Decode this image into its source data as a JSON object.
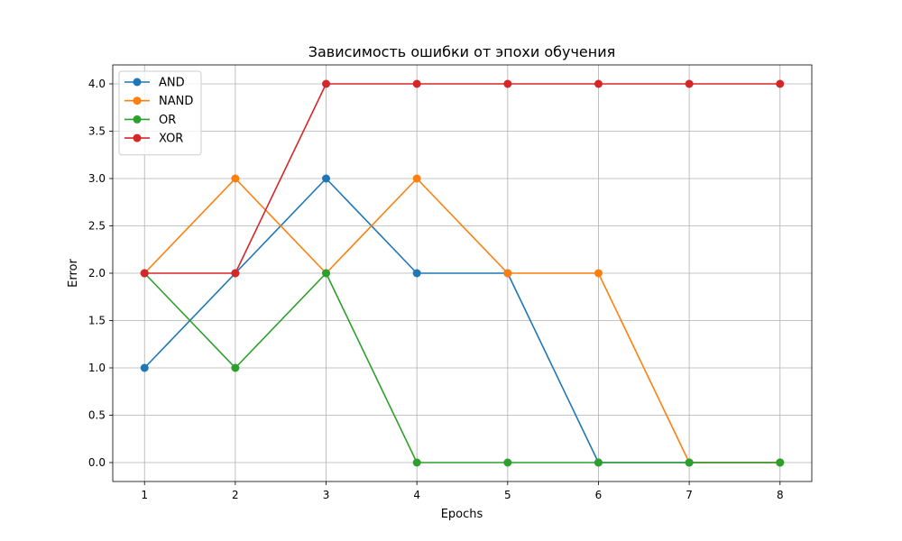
{
  "chart_data": {
    "type": "line",
    "title": "Зависимость ошибки от эпохи обучения",
    "xlabel": "Epochs",
    "ylabel": "Error",
    "x": [
      1,
      2,
      3,
      4,
      5,
      6,
      7,
      8
    ],
    "xticks": [
      "1",
      "2",
      "3",
      "4",
      "5",
      "6",
      "7",
      "8"
    ],
    "yticks": [
      "0.0",
      "0.5",
      "1.0",
      "1.5",
      "2.0",
      "2.5",
      "3.0",
      "3.5",
      "4.0"
    ],
    "xlim": [
      0.65,
      8.35
    ],
    "ylim": [
      -0.2,
      4.2
    ],
    "grid": true,
    "legend_position": "top-left",
    "series": [
      {
        "name": "AND",
        "color": "#1f77b4",
        "values": [
          1,
          2,
          3,
          2,
          2,
          0,
          0,
          0
        ]
      },
      {
        "name": "NAND",
        "color": "#ff7f0e",
        "values": [
          2,
          3,
          2,
          3,
          2,
          2,
          0,
          0
        ]
      },
      {
        "name": "OR",
        "color": "#2ca02c",
        "values": [
          2,
          1,
          2,
          0,
          0,
          0,
          0,
          0
        ]
      },
      {
        "name": "XOR",
        "color": "#d62728",
        "values": [
          2,
          2,
          4,
          4,
          4,
          4,
          4,
          4
        ]
      }
    ]
  }
}
